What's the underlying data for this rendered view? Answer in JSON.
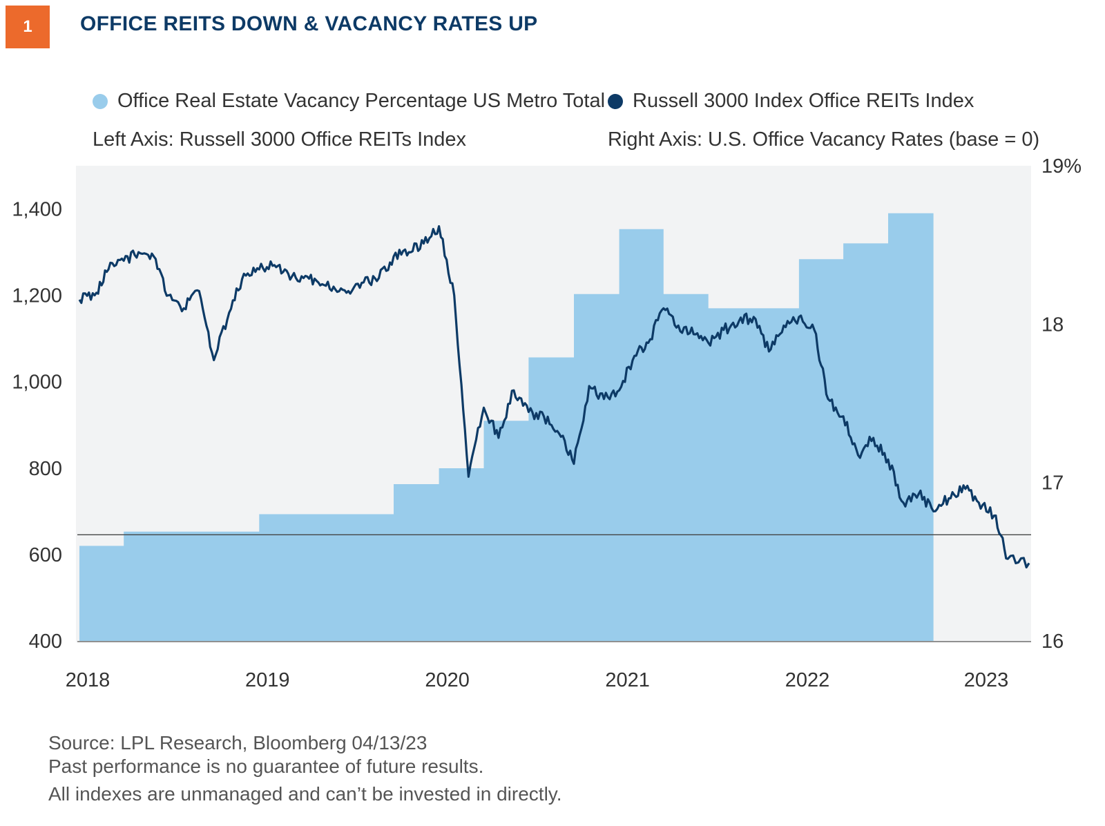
{
  "header": {
    "badge": "1",
    "title": "OFFICE REITS DOWN & VACANCY RATES UP"
  },
  "legend": {
    "vacancy_label": "Office Real Estate Vacancy Percentage US Metro Total",
    "reit_label": "Russell 3000 Index Office REITs Index",
    "left_axis_note": "Left Axis: Russell 3000 Office REITs Index",
    "right_axis_note": "Right Axis: U.S. Office Vacancy Rates (base = 0)"
  },
  "footer": {
    "source": "Source: LPL Research, Bloomberg  04/13/23",
    "disclaimer_1": "Past performance is no guarantee of future results.",
    "disclaimer_2": "All indexes are unmanaged and can’t be invested in directly."
  },
  "colors": {
    "vacancy": "#99cceb",
    "reit": "#0d3a66",
    "plot_bg": "#f2f3f4",
    "badge": "#ec6a2c"
  },
  "chart_data": {
    "type": "line",
    "x_range": [
      "2018-01-01",
      "2023-04-13"
    ],
    "x_ticks": [
      "2018",
      "2019",
      "2020",
      "2021",
      "2022",
      "2023"
    ],
    "y_left": {
      "range": [
        400,
        1500
      ],
      "ticks": [
        "1,400",
        "1,200",
        "1,000",
        "800",
        "600",
        "400"
      ]
    },
    "y_right": {
      "range": [
        16,
        19
      ],
      "ticks": [
        "19%",
        "18",
        "17",
        "16"
      ],
      "reference_line": 16.67
    },
    "series": [
      {
        "name": "Office Real Estate Vacancy Percentage US Metro Total",
        "type": "step-area",
        "axis": "right",
        "points": [
          [
            "2018-01-01",
            16.6
          ],
          [
            "2018-04-01",
            16.69
          ],
          [
            "2018-07-01",
            16.69
          ],
          [
            "2018-10-01",
            16.69
          ],
          [
            "2019-01-01",
            16.8
          ],
          [
            "2019-04-01",
            16.8
          ],
          [
            "2019-07-01",
            16.8
          ],
          [
            "2019-10-01",
            16.99
          ],
          [
            "2020-01-01",
            17.09
          ],
          [
            "2020-04-01",
            17.39
          ],
          [
            "2020-07-01",
            17.79
          ],
          [
            "2020-10-01",
            18.19
          ],
          [
            "2021-01-01",
            18.6
          ],
          [
            "2021-04-01",
            18.19
          ],
          [
            "2021-07-01",
            18.1
          ],
          [
            "2021-10-01",
            18.1
          ],
          [
            "2022-01-01",
            18.41
          ],
          [
            "2022-04-01",
            18.51
          ],
          [
            "2022-07-01",
            18.7
          ],
          [
            "2022-10-01",
            null
          ]
        ]
      },
      {
        "name": "Russell 3000 Index Office REITs Index",
        "type": "line",
        "axis": "left",
        "points": [
          [
            "2018-01-01",
            1190
          ],
          [
            "2018-02-01",
            1200
          ],
          [
            "2018-03-01",
            1260
          ],
          [
            "2018-04-01",
            1280
          ],
          [
            "2018-05-01",
            1300
          ],
          [
            "2018-06-01",
            1290
          ],
          [
            "2018-07-01",
            1200
          ],
          [
            "2018-08-01",
            1170
          ],
          [
            "2018-09-01",
            1210
          ],
          [
            "2018-10-01",
            1050
          ],
          [
            "2018-11-01",
            1160
          ],
          [
            "2018-12-01",
            1250
          ],
          [
            "2019-01-01",
            1260
          ],
          [
            "2019-02-01",
            1270
          ],
          [
            "2019-03-01",
            1250
          ],
          [
            "2019-04-01",
            1240
          ],
          [
            "2019-05-01",
            1230
          ],
          [
            "2019-06-01",
            1220
          ],
          [
            "2019-07-01",
            1210
          ],
          [
            "2019-08-01",
            1230
          ],
          [
            "2019-09-01",
            1240
          ],
          [
            "2019-10-01",
            1290
          ],
          [
            "2019-11-01",
            1300
          ],
          [
            "2019-12-01",
            1320
          ],
          [
            "2020-01-01",
            1360
          ],
          [
            "2020-02-01",
            1200
          ],
          [
            "2020-03-01",
            780
          ],
          [
            "2020-04-01",
            940
          ],
          [
            "2020-05-01",
            870
          ],
          [
            "2020-06-01",
            980
          ],
          [
            "2020-07-01",
            930
          ],
          [
            "2020-08-01",
            920
          ],
          [
            "2020-09-01",
            880
          ],
          [
            "2020-10-01",
            810
          ],
          [
            "2020-11-01",
            990
          ],
          [
            "2020-12-01",
            960
          ],
          [
            "2021-01-01",
            980
          ],
          [
            "2021-02-01",
            1060
          ],
          [
            "2021-03-01",
            1090
          ],
          [
            "2021-04-01",
            1170
          ],
          [
            "2021-05-01",
            1130
          ],
          [
            "2021-06-01",
            1110
          ],
          [
            "2021-07-01",
            1090
          ],
          [
            "2021-08-01",
            1120
          ],
          [
            "2021-09-01",
            1140
          ],
          [
            "2021-10-01",
            1150
          ],
          [
            "2021-11-01",
            1070
          ],
          [
            "2021-12-01",
            1130
          ],
          [
            "2022-01-01",
            1150
          ],
          [
            "2022-02-01",
            1120
          ],
          [
            "2022-03-01",
            960
          ],
          [
            "2022-04-01",
            920
          ],
          [
            "2022-05-01",
            830
          ],
          [
            "2022-06-01",
            870
          ],
          [
            "2022-07-01",
            820
          ],
          [
            "2022-08-01",
            720
          ],
          [
            "2022-09-01",
            740
          ],
          [
            "2022-10-01",
            700
          ],
          [
            "2022-11-01",
            730
          ],
          [
            "2022-12-01",
            760
          ],
          [
            "2023-01-01",
            720
          ],
          [
            "2023-02-01",
            690
          ],
          [
            "2023-03-01",
            590
          ],
          [
            "2023-04-13",
            580
          ]
        ]
      }
    ]
  }
}
